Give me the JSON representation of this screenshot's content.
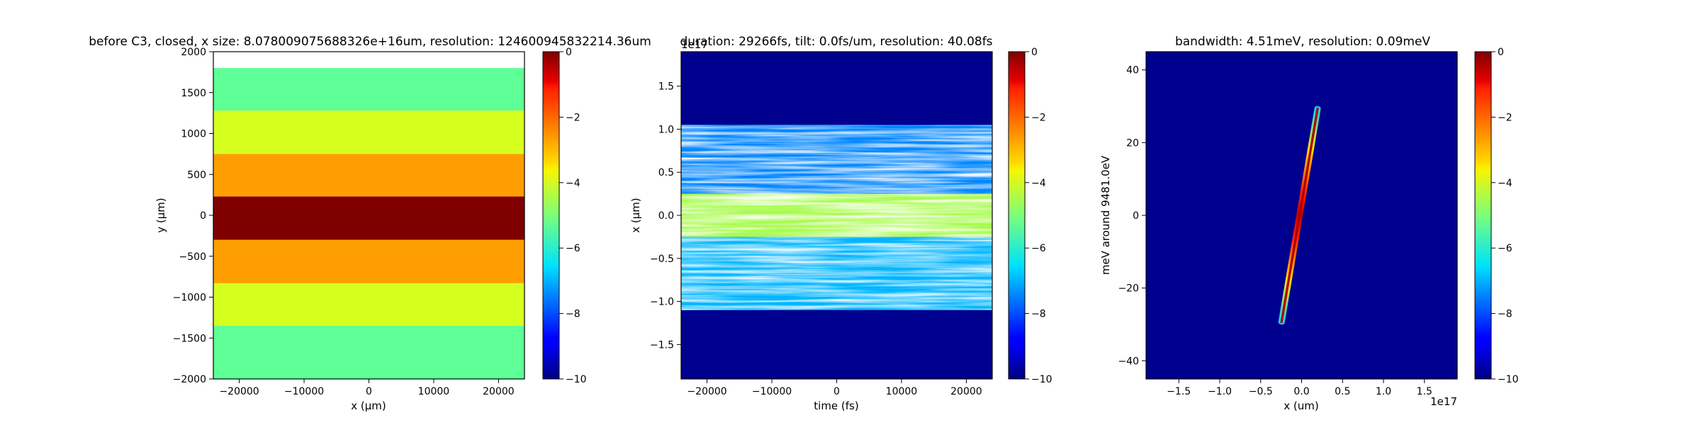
{
  "chart_data": [
    {
      "type": "heatmap",
      "title": "before C3, closed, x size: 8.078009075688326e+16um, resolution: 124600945832214.36um",
      "xlabel": "x (μm)",
      "ylabel": "y (μm)",
      "xlim": [
        -24000,
        24000
      ],
      "ylim": [
        -2000,
        2000
      ],
      "x_ticks": [
        "−20000",
        "−10000",
        "0",
        "10000",
        "20000"
      ],
      "x_tick_values": [
        -20000,
        -10000,
        0,
        10000,
        20000
      ],
      "y_ticks": [
        "−2000",
        "−1500",
        "−1000",
        "−500",
        "0",
        "500",
        "1000",
        "1500",
        "2000"
      ],
      "y_tick_values": [
        -2000,
        -1500,
        -1000,
        -500,
        0,
        500,
        1000,
        1500,
        2000
      ],
      "colormap": "jet",
      "colorbar": {
        "range": [
          -10,
          0
        ],
        "ticks": [
          "0",
          "−2",
          "−4",
          "−6",
          "−8",
          "−10"
        ],
        "tick_values": [
          0,
          -2,
          -4,
          -6,
          -8,
          -10
        ]
      },
      "bands": [
        {
          "y_from": 1800,
          "y_to": 2000,
          "value": null,
          "color": "#ffffff"
        },
        {
          "y_from": 1280,
          "y_to": 1800,
          "value": -5.2,
          "color": "#5dff96"
        },
        {
          "y_from": 750,
          "y_to": 1280,
          "value": -3.6,
          "color": "#d6ff20"
        },
        {
          "y_from": 230,
          "y_to": 750,
          "value": -1.9,
          "color": "#ff9e00"
        },
        {
          "y_from": -300,
          "y_to": 230,
          "value": 0,
          "color": "#800000"
        },
        {
          "y_from": -830,
          "y_to": -300,
          "value": -1.9,
          "color": "#ff9e00"
        },
        {
          "y_from": -1350,
          "y_to": -830,
          "value": -3.6,
          "color": "#d6ff20"
        },
        {
          "y_from": -2000,
          "y_to": -1350,
          "value": -5.2,
          "color": "#5dff96"
        }
      ]
    },
    {
      "type": "heatmap",
      "title": "duration: 29266fs, tilt: 0.0fs/um, resolution: 40.08fs",
      "xlabel": "time (fs)",
      "ylabel": "x (μm)",
      "y_offset_text": "1e17",
      "xlim": [
        -24000,
        24000
      ],
      "ylim": [
        -1.9,
        1.9
      ],
      "x_ticks": [
        "−20000",
        "−10000",
        "0",
        "10000",
        "20000"
      ],
      "x_tick_values": [
        -20000,
        -10000,
        0,
        10000,
        20000
      ],
      "y_ticks": [
        "−1.5",
        "−1.0",
        "−0.5",
        "0.0",
        "0.5",
        "1.0",
        "1.5"
      ],
      "y_tick_values": [
        -1.5,
        -1.0,
        -0.5,
        0.0,
        0.5,
        1.0,
        1.5
      ],
      "colormap": "jet",
      "background_color": "#00008f",
      "colorbar": {
        "range": [
          -10,
          0
        ],
        "ticks": [
          "0",
          "−2",
          "−4",
          "−6",
          "−8",
          "−10"
        ],
        "tick_values": [
          0,
          -2,
          -4,
          -6,
          -8,
          -10
        ]
      },
      "regions": [
        {
          "y_from": 0.25,
          "y_to": 1.05,
          "level": -7.5,
          "texture": "noisy"
        },
        {
          "y_from": -0.25,
          "y_to": 0.25,
          "level": -4.5,
          "texture": "noisy"
        },
        {
          "y_from": -1.1,
          "y_to": -0.25,
          "level": -7.0,
          "texture": "noisy"
        }
      ]
    },
    {
      "type": "heatmap",
      "title": "bandwidth: 4.51meV, resolution: 0.09meV",
      "xlabel": "x (um)",
      "ylabel": "meV around 9481.0eV",
      "x_offset_text": "1e17",
      "xlim": [
        -1.9,
        1.9
      ],
      "ylim": [
        -45,
        45
      ],
      "x_ticks": [
        "−1.5",
        "−1.0",
        "−0.5",
        "0.0",
        "0.5",
        "1.0",
        "1.5"
      ],
      "x_tick_values": [
        -1.5,
        -1.0,
        -0.5,
        0.0,
        0.5,
        1.0,
        1.5
      ],
      "y_ticks": [
        "−40",
        "−20",
        "0",
        "20",
        "40"
      ],
      "y_tick_values": [
        -40,
        -20,
        0,
        20,
        40
      ],
      "colormap": "jet",
      "background_color": "#00008f",
      "colorbar": {
        "range": [
          -10,
          0
        ],
        "ticks": [
          "0",
          "−2",
          "−4",
          "−6",
          "−8",
          "−10"
        ],
        "tick_values": [
          0,
          -2,
          -4,
          -6,
          -8,
          -10
        ]
      },
      "streak": {
        "from": [
          -0.25,
          -30
        ],
        "to": [
          0.2,
          30
        ]
      }
    }
  ]
}
